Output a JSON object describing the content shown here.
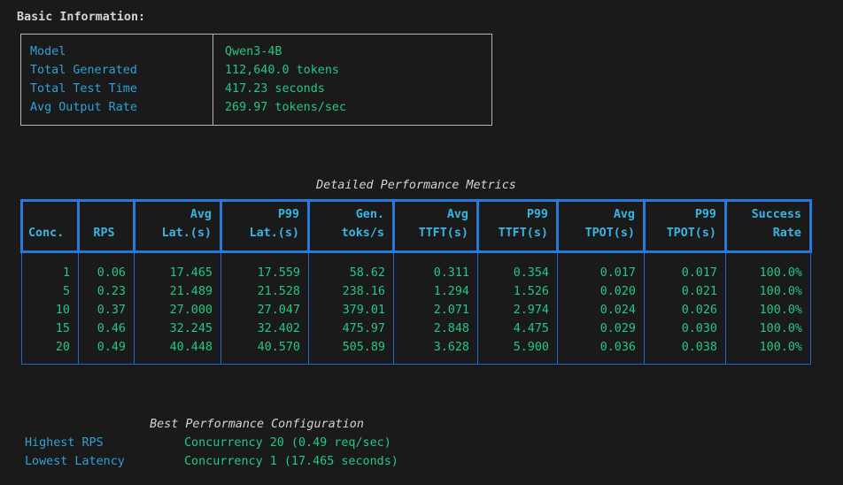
{
  "colors": {
    "background": "#1a1a1a",
    "foreground": "#d4d4d4",
    "label_cyan": "#2da2d8",
    "header_cyan": "#38b5e0",
    "value_green": "#23c882",
    "table_border_thick": "#2679dd",
    "table_border_thin": "#1f68c8",
    "info_box_border": "#b4b4b4"
  },
  "basic_info": {
    "title": "Basic Information:",
    "rows": [
      {
        "label": "Model",
        "value": "Qwen3-4B"
      },
      {
        "label": "Total Generated",
        "value": "112,640.0 tokens"
      },
      {
        "label": "Total Test Time",
        "value": "417.23 seconds"
      },
      {
        "label": "Avg Output Rate",
        "value": "269.97 tokens/sec"
      }
    ]
  },
  "metrics_table": {
    "title": "Detailed Performance Metrics",
    "columns": [
      {
        "label": "Conc.",
        "align": "left"
      },
      {
        "label": "RPS",
        "align": "center"
      },
      {
        "label": "Avg\nLat.(s)",
        "align": "right"
      },
      {
        "label": "P99\nLat.(s)",
        "align": "right"
      },
      {
        "label": "Gen.\ntoks/s",
        "align": "right"
      },
      {
        "label": "Avg\nTTFT(s)",
        "align": "right"
      },
      {
        "label": "P99\nTTFT(s)",
        "align": "right"
      },
      {
        "label": "Avg\nTPOT(s)",
        "align": "right"
      },
      {
        "label": "P99\nTPOT(s)",
        "align": "right"
      },
      {
        "label": "Success\nRate",
        "align": "right"
      }
    ],
    "rows": [
      [
        "1",
        "0.06",
        "17.465",
        "17.559",
        "58.62",
        "0.311",
        "0.354",
        "0.017",
        "0.017",
        "100.0%"
      ],
      [
        "5",
        "0.23",
        "21.489",
        "21.528",
        "238.16",
        "1.294",
        "1.526",
        "0.020",
        "0.021",
        "100.0%"
      ],
      [
        "10",
        "0.37",
        "27.000",
        "27.047",
        "379.01",
        "2.071",
        "2.974",
        "0.024",
        "0.026",
        "100.0%"
      ],
      [
        "15",
        "0.46",
        "32.245",
        "32.402",
        "475.97",
        "2.848",
        "4.475",
        "0.029",
        "0.030",
        "100.0%"
      ],
      [
        "20",
        "0.49",
        "40.448",
        "40.570",
        "505.89",
        "3.628",
        "5.900",
        "0.036",
        "0.038",
        "100.0%"
      ]
    ]
  },
  "best_config": {
    "title": "Best Performance Configuration",
    "rows": [
      {
        "label": "Highest RPS",
        "value": "Concurrency 20 (0.49 req/sec)"
      },
      {
        "label": "Lowest Latency",
        "value": "Concurrency 1 (17.465 seconds)"
      }
    ]
  }
}
